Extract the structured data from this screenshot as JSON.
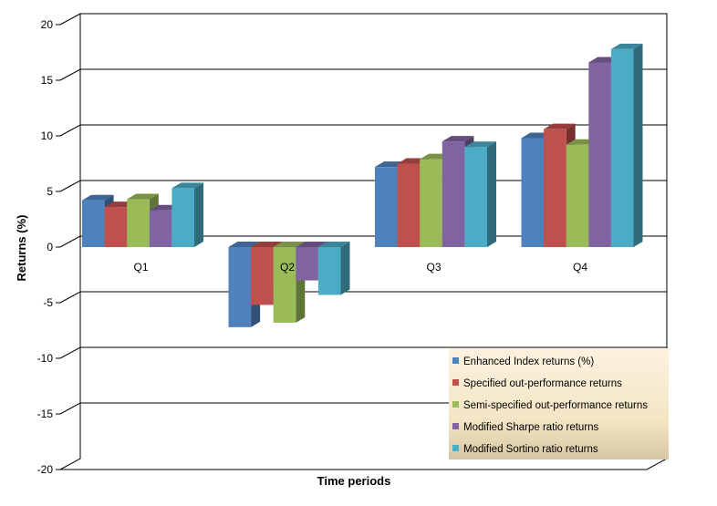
{
  "chart_data": {
    "type": "bar",
    "title": "",
    "xlabel": "Time periods",
    "ylabel": "Returns (%)",
    "ylim": [
      -20,
      20
    ],
    "yticks": [
      -20,
      -15,
      -10,
      -5,
      0,
      5,
      10,
      15,
      20
    ],
    "categories": [
      "Q1",
      "Q2",
      "Q3",
      "Q4"
    ],
    "grid": true,
    "legend_position": "bottom-right",
    "series": [
      {
        "name": "Enhanced Index returns (%)",
        "color": "#4F81BD",
        "values": [
          4.2,
          -7.2,
          7.2,
          9.8
        ]
      },
      {
        "name": "Specified out-performance returns",
        "color": "#C0504D",
        "values": [
          3.6,
          -5.2,
          7.5,
          10.6
        ]
      },
      {
        "name": "Semi-specified out-performance returns",
        "color": "#9BBB59",
        "values": [
          4.3,
          -6.8,
          7.9,
          9.2
        ]
      },
      {
        "name": "Modified Sharpe ratio returns",
        "color": "#8064A2",
        "values": [
          3.3,
          -3.0,
          9.5,
          16.6
        ]
      },
      {
        "name": "Modified Sortino ratio returns",
        "color": "#4BACC6",
        "values": [
          5.3,
          -4.3,
          9.0,
          17.8
        ]
      }
    ]
  }
}
